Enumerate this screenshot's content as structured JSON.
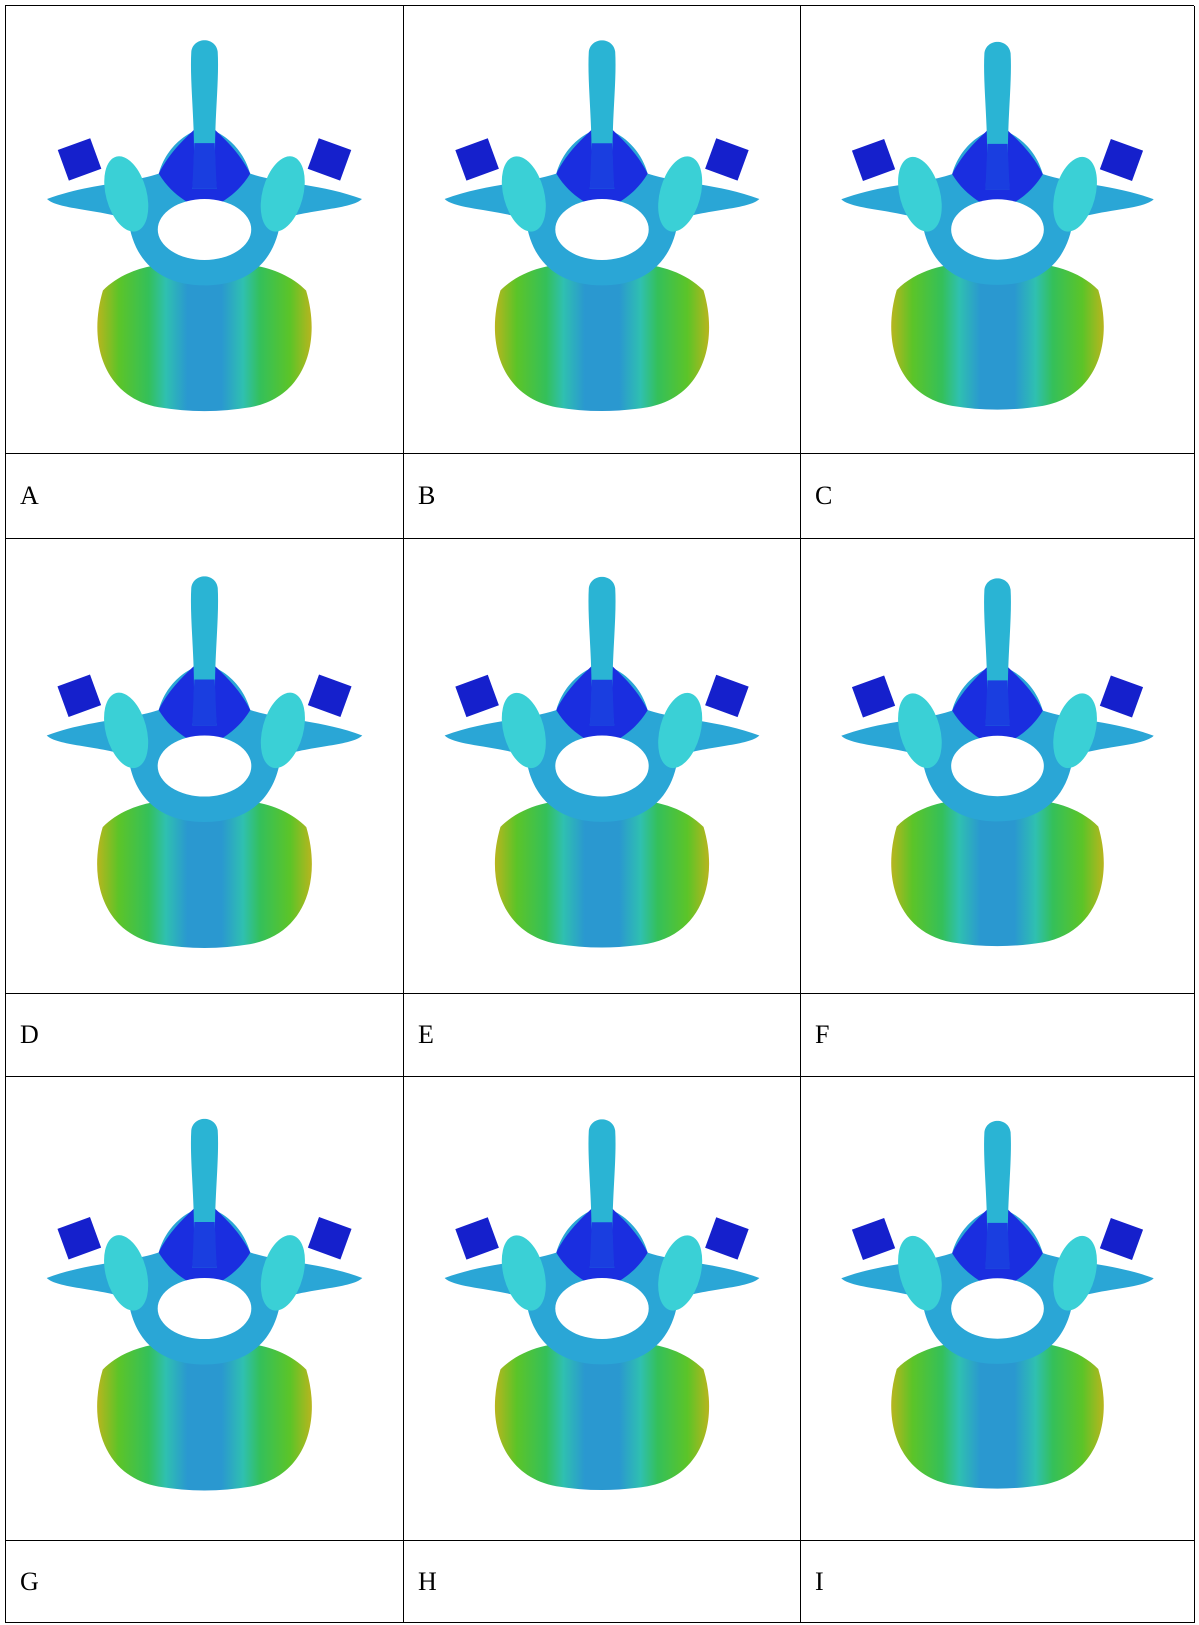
{
  "figure": {
    "panels": [
      {
        "label": "A"
      },
      {
        "label": "B"
      },
      {
        "label": "C"
      },
      {
        "label": "D"
      },
      {
        "label": "E"
      },
      {
        "label": "F"
      },
      {
        "label": "G"
      },
      {
        "label": "H"
      },
      {
        "label": "I"
      }
    ]
  }
}
